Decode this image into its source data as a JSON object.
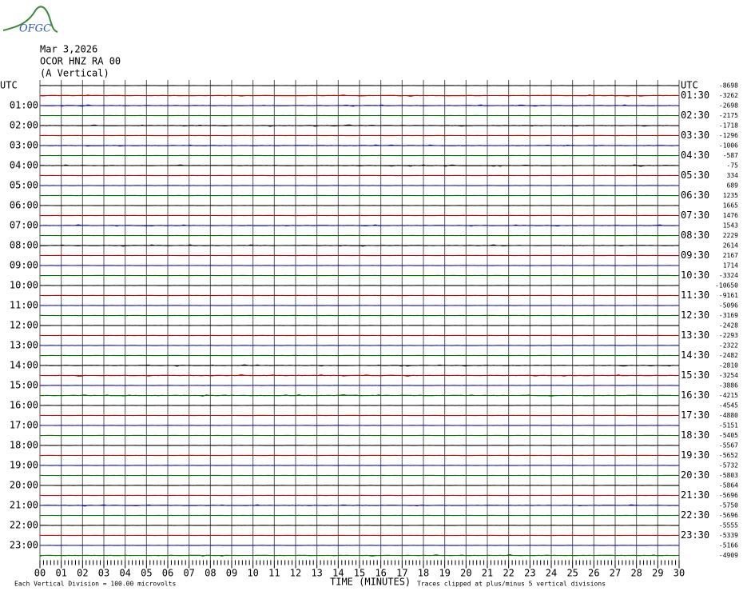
{
  "header": {
    "logo": "OFGC",
    "date": "Mar 3,2026",
    "station": "OCOR HNZ RA 00",
    "component": "(A Vertical)"
  },
  "left_labels": [
    "UTC",
    "01:00",
    "02:00",
    "03:00",
    "04:00",
    "05:00",
    "06:00",
    "07:00",
    "08:00",
    "09:00",
    "10:00",
    "11:00",
    "12:00",
    "13:00",
    "14:00",
    "15:00",
    "16:00",
    "17:00",
    "18:00",
    "19:00",
    "20:00",
    "21:00",
    "22:00",
    "23:00"
  ],
  "right_labels": [
    "UTC",
    "01:30",
    "02:30",
    "03:30",
    "04:30",
    "05:30",
    "06:30",
    "07:30",
    "08:30",
    "09:30",
    "10:30",
    "11:30",
    "12:30",
    "13:30",
    "14:30",
    "15:30",
    "16:30",
    "17:30",
    "18:30",
    "19:30",
    "20:30",
    "21:30",
    "22:30",
    "23:30"
  ],
  "offsets": [
    -8698,
    -3262,
    -2698,
    -2175,
    -1718,
    -1296,
    -1006,
    -587,
    -75,
    334,
    689,
    1235,
    1665,
    1476,
    1543,
    2229,
    2614,
    2167,
    1714,
    -3324,
    -10650,
    -9161,
    -5096,
    -3169,
    -2428,
    -2293,
    -2322,
    -2482,
    -2810,
    -3254,
    -3886,
    -4215,
    -4545,
    -4880,
    -5151,
    -5405,
    -5567,
    -5652,
    -5732,
    -5803,
    -5864,
    -5696,
    -5750,
    -5696,
    -5555,
    -5339,
    -5166,
    -4909
  ],
  "x_axis": {
    "ticks": [
      "00",
      "01",
      "02",
      "03",
      "04",
      "05",
      "06",
      "07",
      "08",
      "09",
      "10",
      "11",
      "12",
      "13",
      "14",
      "15",
      "16",
      "17",
      "18",
      "19",
      "20",
      "21",
      "22",
      "23",
      "24",
      "25",
      "26",
      "27",
      "28",
      "29",
      "30"
    ],
    "title": "TIME (MINUTES)"
  },
  "footer": {
    "division": "Each Vertical Division =  100.00 microvolts",
    "clip": "Traces clipped at plus/minus 5 vertical divisions"
  }
}
